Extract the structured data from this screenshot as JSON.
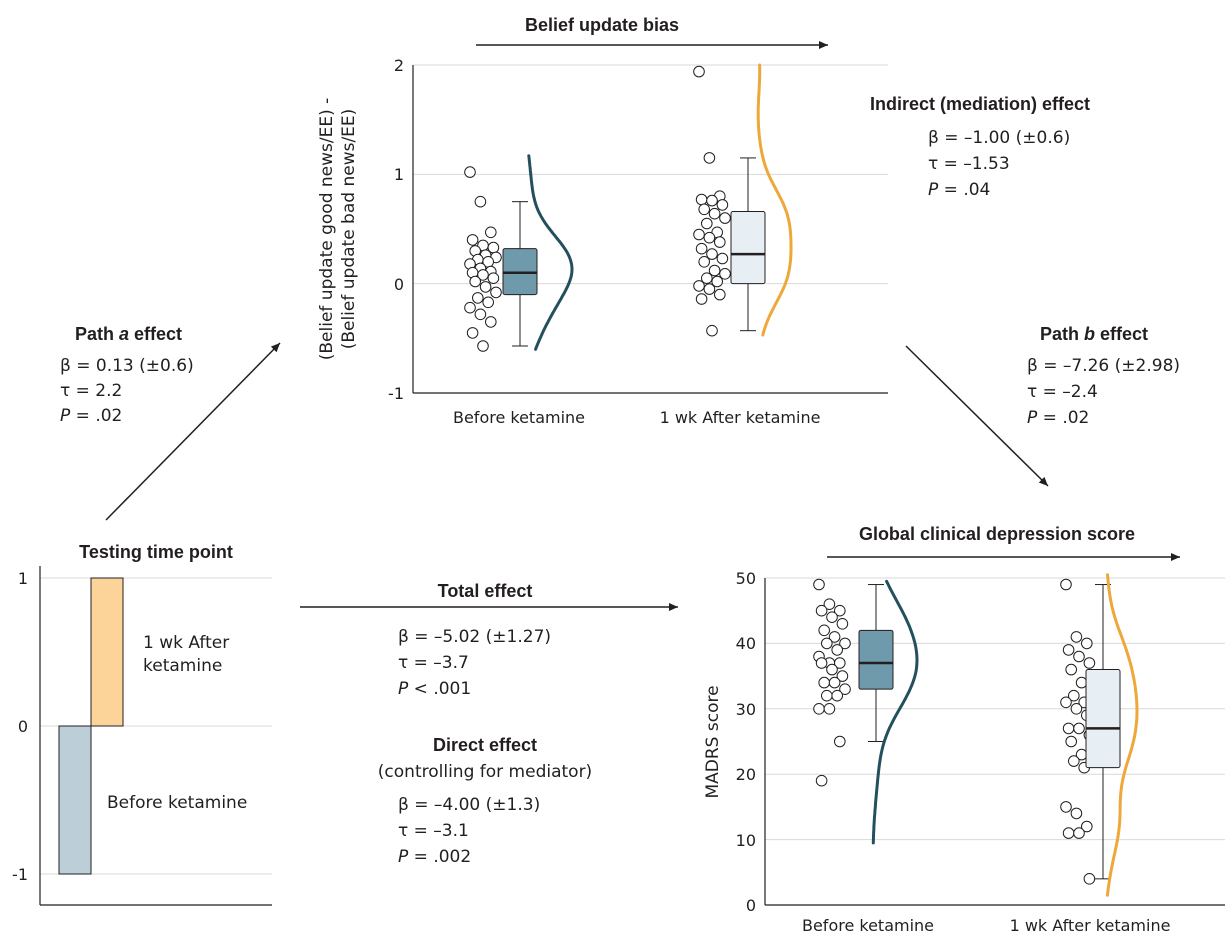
{
  "colors": {
    "before": "#3f7f92",
    "before_box": "#6f9aab",
    "after_curve": "#eea83a",
    "after_box": "#e7eff4",
    "bar_before": "#bccfd9",
    "bar_after": "#fcd399",
    "dark_curve": "#24505e"
  },
  "chart_data": [
    {
      "type": "bar",
      "title": "Testing time point",
      "categories": [
        "Before ketamine",
        "1 wk After ketamine"
      ],
      "values": [
        -1,
        1
      ],
      "ylim": [
        -1.2,
        1
      ],
      "yticks": [
        "1",
        "0",
        "-1"
      ],
      "bar_labels": [
        "Before ketamine",
        "1 wk After ketamine"
      ]
    },
    {
      "type": "box",
      "title": "Belief update bias",
      "ylabel_line1": "(Belief update good news/EE) -",
      "ylabel_line2": "(Belief update bad news/EE)",
      "ylim": [
        -1,
        2
      ],
      "yticks": [
        "2",
        "1",
        "0",
        "-1"
      ],
      "categories": [
        "Before ketamine",
        "1 wk After ketamine"
      ],
      "box_stats": [
        {
          "whisker_low": -0.57,
          "q1": -0.1,
          "median": 0.1,
          "q3": 0.32,
          "whisker_high": 0.75
        },
        {
          "whisker_low": -0.43,
          "q1": 0.0,
          "median": 0.27,
          "q3": 0.66,
          "whisker_high": 1.15
        }
      ],
      "points": [
        [
          1.02,
          0.75,
          0.47,
          0.4,
          0.35,
          0.33,
          0.3,
          0.26,
          0.24,
          0.22,
          0.2,
          0.18,
          0.14,
          0.11,
          0.1,
          0.08,
          0.05,
          0.02,
          -0.03,
          -0.08,
          -0.13,
          -0.17,
          -0.22,
          -0.28,
          -0.35,
          -0.45,
          -0.57
        ],
        [
          1.94,
          1.15,
          0.8,
          0.77,
          0.76,
          0.72,
          0.68,
          0.64,
          0.6,
          0.55,
          0.47,
          0.45,
          0.42,
          0.38,
          0.32,
          0.27,
          0.23,
          0.2,
          0.12,
          0.09,
          0.05,
          0.02,
          -0.02,
          -0.05,
          -0.1,
          -0.14,
          -0.43
        ]
      ]
    },
    {
      "type": "box",
      "title": "Global clinical depression score",
      "ylabel": "MADRS score",
      "ylim": [
        0,
        50
      ],
      "yticks": [
        "50",
        "40",
        "30",
        "20",
        "10",
        "0"
      ],
      "categories": [
        "Before ketamine",
        "1 wk After ketamine"
      ],
      "box_stats": [
        {
          "whisker_low": 25,
          "q1": 33,
          "median": 37,
          "q3": 42,
          "whisker_high": 49
        },
        {
          "whisker_low": 4,
          "q1": 21,
          "median": 27,
          "q3": 36,
          "whisker_high": 49
        }
      ],
      "points": [
        [
          49,
          46,
          45,
          45,
          44,
          43,
          42,
          41,
          40,
          40,
          39,
          38,
          37,
          37,
          37,
          36,
          35,
          34,
          34,
          33,
          32,
          32,
          30,
          30,
          25,
          19
        ],
        [
          49,
          41,
          40,
          39,
          38,
          37,
          36,
          34,
          33,
          32,
          31,
          31,
          30,
          29,
          27,
          27,
          26,
          25,
          23,
          23,
          22,
          21,
          15,
          14,
          12,
          11,
          11,
          4
        ]
      ]
    }
  ],
  "labels": {
    "path_a_title_pre": "Path ",
    "path_a_title_ital": "a",
    "path_a_title_post": " effect",
    "path_a_beta": "β = 0.13 (±0.6)",
    "path_a_tau": "τ = 2.2",
    "path_a_p_ital": "P",
    "path_a_p": " = .02",
    "path_b_title_pre": "Path ",
    "path_b_title_ital": "b",
    "path_b_title_post": " effect",
    "path_b_beta": "β = –7.26 (±2.98)",
    "path_b_tau": "τ = –2.4",
    "path_b_p_ital": "P",
    "path_b_p": " = .02",
    "indirect_title": "Indirect (mediation) effect",
    "indirect_beta": "β = –1.00 (±0.6)",
    "indirect_tau": "τ = –1.53",
    "indirect_p_ital": "P",
    "indirect_p": " = .04",
    "total_title": "Total effect",
    "total_beta": "β = –5.02 (±1.27)",
    "total_tau": "τ = –3.7",
    "total_p_ital": "P",
    "total_p": " < .001",
    "direct_title": "Direct effect",
    "direct_sub": "(controlling for mediator)",
    "direct_beta": "β = –4.00 (±1.3)",
    "direct_tau": "τ = –3.1",
    "direct_p_ital": "P",
    "direct_p": " = .002"
  }
}
